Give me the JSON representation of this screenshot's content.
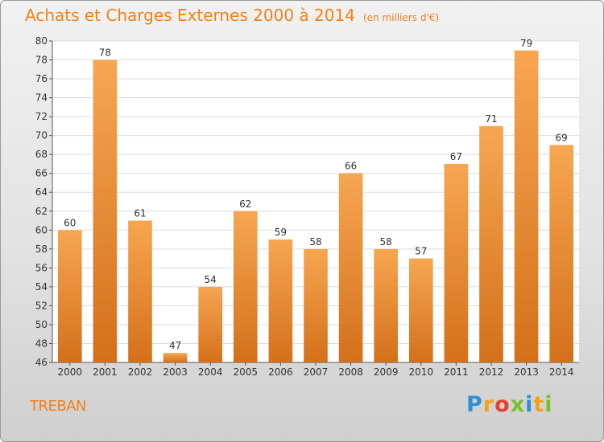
{
  "title": "Achats et Charges Externes 2000 à 2014",
  "subtitle": "(en milliers d'€)",
  "commune": "TREBAN",
  "logo": {
    "letters": [
      "P",
      "r",
      "o",
      "x",
      "i",
      "t",
      "i"
    ],
    "colors": [
      "#2f8fd6",
      "#f2a21a",
      "#e8402a",
      "#7bbf2a",
      "#2f8fd6",
      "#f2a21a",
      "#7bbf2a"
    ]
  },
  "colors": {
    "accent": "#f08219",
    "bar_top": "#f7a652",
    "bar_bottom": "#d4701a"
  },
  "chart_data": {
    "type": "bar",
    "categories": [
      "2000",
      "2001",
      "2002",
      "2003",
      "2004",
      "2005",
      "2006",
      "2007",
      "2008",
      "2009",
      "2010",
      "2011",
      "2012",
      "2013",
      "2014"
    ],
    "values": [
      60,
      78,
      61,
      47,
      54,
      62,
      59,
      58,
      66,
      58,
      57,
      67,
      71,
      79,
      69
    ],
    "ylim": [
      46,
      80
    ],
    "yticks": [
      46,
      48,
      50,
      52,
      54,
      56,
      58,
      60,
      62,
      64,
      66,
      68,
      70,
      72,
      74,
      76,
      78,
      80
    ],
    "grid": true,
    "data_labels": true
  }
}
